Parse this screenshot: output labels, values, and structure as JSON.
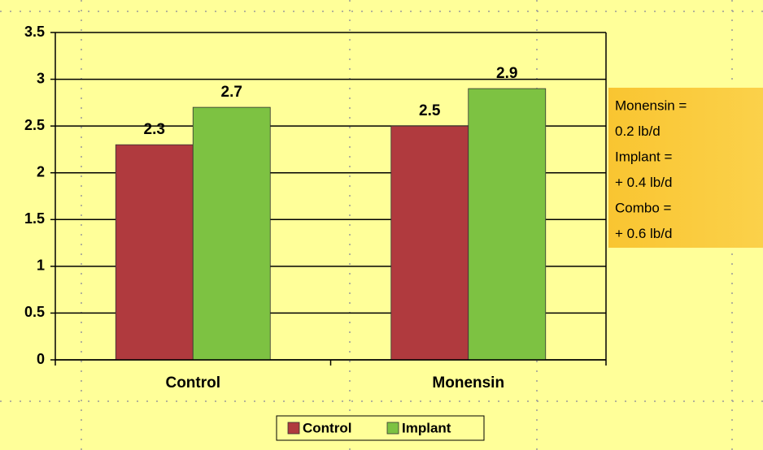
{
  "chart_data": {
    "type": "bar",
    "categories": [
      "Control",
      "Monensin"
    ],
    "series": [
      {
        "name": "Control",
        "color": "#b03a3e",
        "values": [
          2.3,
          2.5
        ]
      },
      {
        "name": "Implant",
        "color": "#7dc242",
        "values": [
          2.7,
          2.9
        ]
      }
    ],
    "ylim": [
      0,
      3.5
    ],
    "yticks": [
      0,
      0.5,
      1,
      1.5,
      2,
      2.5,
      3,
      3.5
    ],
    "grid": true,
    "legend": "bottom",
    "annotation": [
      "Monensin =",
      "0.2 lb/d",
      "Implant =",
      "+ 0.4 lb/d",
      "Combo =",
      "+ 0.6 lb/d"
    ]
  }
}
